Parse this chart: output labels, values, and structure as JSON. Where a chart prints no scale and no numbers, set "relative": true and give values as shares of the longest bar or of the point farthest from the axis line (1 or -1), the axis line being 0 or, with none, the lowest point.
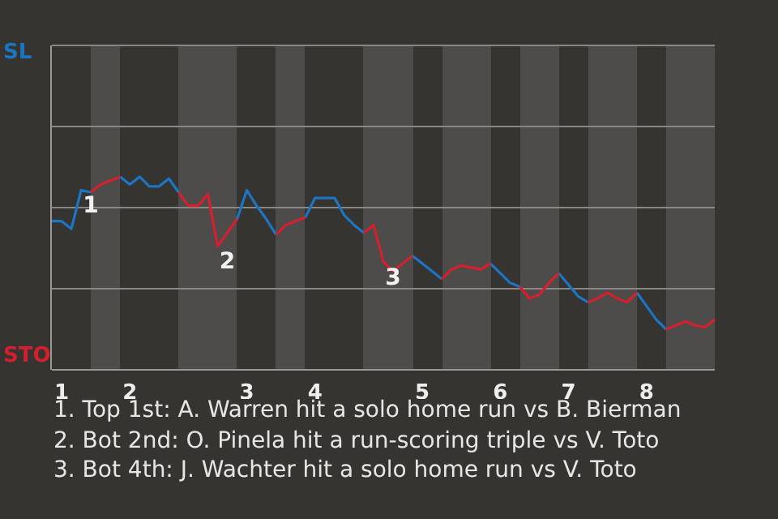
{
  "chart_data": {
    "type": "line",
    "relative": true,
    "categories": [
      null,
      "1",
      null,
      null,
      null,
      null,
      null,
      null,
      "2",
      null,
      null,
      null,
      null,
      null,
      null,
      null,
      null,
      null,
      null,
      null,
      "3",
      null,
      null,
      null,
      null,
      null,
      null,
      "4",
      null,
      null,
      null,
      null,
      null,
      null,
      null,
      null,
      null,
      null,
      "5",
      null,
      null,
      null,
      null,
      null,
      null,
      null,
      "6",
      null,
      null,
      null,
      null,
      null,
      null,
      "7",
      null,
      null,
      null,
      null,
      null,
      null,
      null,
      "8",
      null,
      null,
      null,
      null,
      null,
      null,
      null
    ],
    "series": [
      {
        "name": "SL",
        "color": "#1c75c4",
        "values": [
          0.77,
          0.77,
          0.73,
          0.93,
          0.92,
          null,
          null,
          1,
          0.96,
          1,
          0.95,
          0.95,
          0.99,
          0.92,
          null,
          null,
          null,
          null,
          null,
          0.78,
          0.93,
          0.85,
          0.78,
          0.7,
          null,
          null,
          0.79,
          0.89,
          0.89,
          0.89,
          0.8,
          0.75,
          0.71,
          null,
          null,
          null,
          null,
          0.59,
          0.55,
          0.51,
          0.47,
          null,
          null,
          null,
          null,
          0.55,
          0.5,
          0.45,
          0.43,
          null,
          null,
          null,
          0.5,
          0.44,
          0.38,
          0.35,
          null,
          null,
          null,
          null,
          0.4,
          0.33,
          0.26,
          0.21,
          null,
          null,
          null,
          null,
          null
        ]
      },
      {
        "name": "STO",
        "color": "#d4202e",
        "values": [
          null,
          null,
          null,
          null,
          0.92,
          0.96,
          0.98,
          1,
          null,
          null,
          null,
          null,
          null,
          0.92,
          0.85,
          0.85,
          0.91,
          0.64,
          0.71,
          0.78,
          null,
          null,
          null,
          0.7,
          0.75,
          0.77,
          0.79,
          null,
          null,
          null,
          null,
          null,
          0.71,
          0.75,
          0.56,
          0.51,
          0.55,
          0.59,
          null,
          null,
          0.47,
          0.52,
          0.54,
          0.53,
          0.52,
          0.55,
          null,
          null,
          0.43,
          0.37,
          0.39,
          0.45,
          0.5,
          null,
          null,
          0.35,
          0.37,
          0.4,
          0.37,
          0.35,
          0.4,
          null,
          null,
          0.21,
          0.23,
          0.25,
          0.23,
          0.22,
          0.26
        ]
      }
    ],
    "ref_lines": [
      {
        "axis": "y",
        "value": 0.42,
        "color": "#8a8886"
      },
      {
        "axis": "y",
        "value": 0.84,
        "color": "#8a8886"
      },
      {
        "axis": "y",
        "value": 1.26,
        "color": "#8a8886"
      },
      {
        "axis": "y",
        "value": 1.68,
        "color": "#8a8886"
      }
    ],
    "annotations": [
      {
        "text": "1",
        "y": 0.93
      },
      {
        "text": "2",
        "y": 0.64
      },
      {
        "text": "3",
        "y": 0.56
      },
      "1. Top 1st: A. Warren hit a solo home run vs B. Bierman",
      "2. Bot 2nd: O. Pinela hit a run-scoring triple vs V. Toto",
      "3. Bot 4th: J. Wachter hit a solo home run vs V. Toto"
    ],
    "legend": "left",
    "marker": "none",
    "line_style": "solid"
  }
}
